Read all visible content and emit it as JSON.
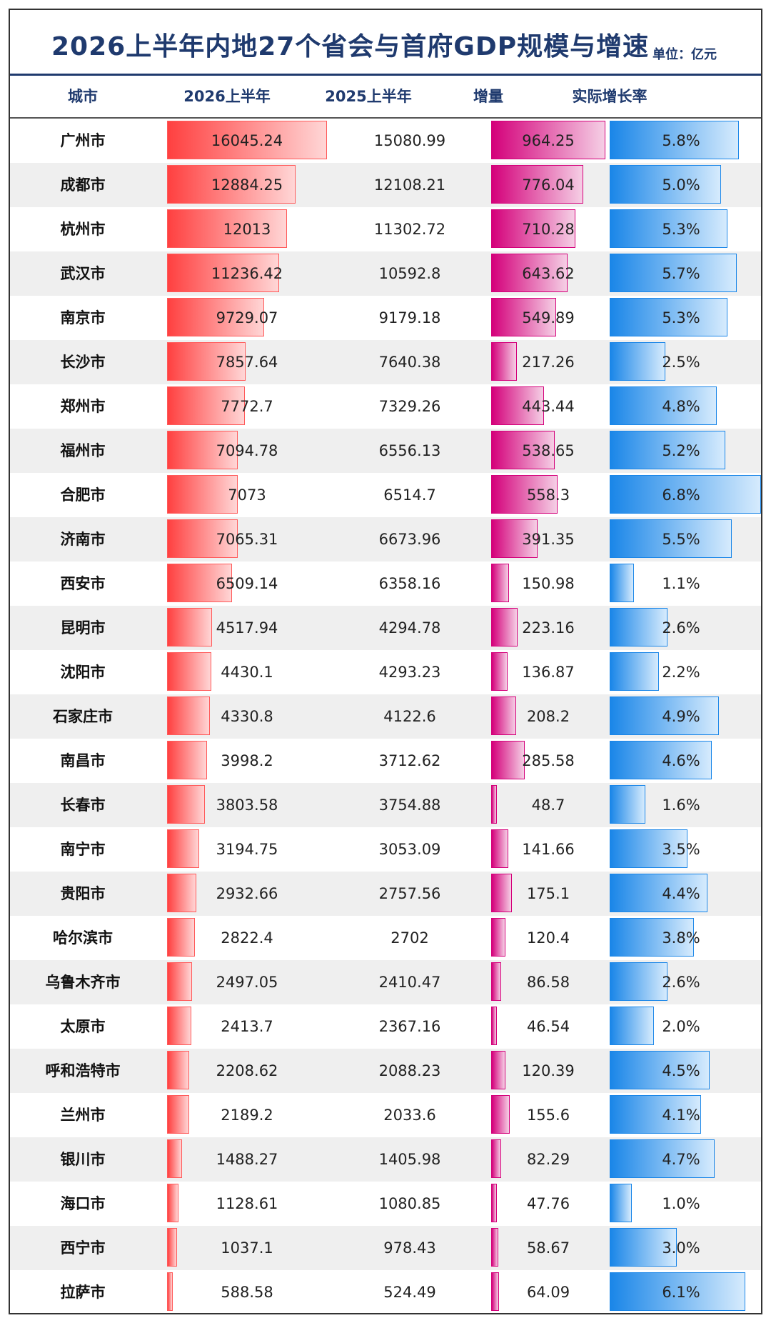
{
  "title": "2026上半年内地27个省会与首府GDP规模与增速",
  "unit": "单位：亿元",
  "headers": [
    "城市",
    "2026上半年",
    "2025上半年",
    "增量",
    "实际增长率"
  ],
  "colors": {
    "title": "#1f3a6e",
    "gdp_bar": "#ff4040",
    "increment_bar": "#d4007a",
    "growth_bar": "#1a86e8",
    "alt_row": "#efefef"
  },
  "chart_data": {
    "type": "table",
    "columns": [
      "城市",
      "2026上半年",
      "2025上半年",
      "增量",
      "实际增长率"
    ],
    "rows": [
      {
        "city": "广州市",
        "gdp_2026h1": "16045.24",
        "gdp_2025h1": "15080.99",
        "increment": "964.25",
        "growth": "5.8%",
        "growth_value": 5.8
      },
      {
        "city": "成都市",
        "gdp_2026h1": "12884.25",
        "gdp_2025h1": "12108.21",
        "increment": "776.04",
        "growth": "5.0%",
        "growth_value": 5.0
      },
      {
        "city": "杭州市",
        "gdp_2026h1": "12013",
        "gdp_2025h1": "11302.72",
        "increment": "710.28",
        "growth": "5.3%",
        "growth_value": 5.3
      },
      {
        "city": "武汉市",
        "gdp_2026h1": "11236.42",
        "gdp_2025h1": "10592.8",
        "increment": "643.62",
        "growth": "5.7%",
        "growth_value": 5.7
      },
      {
        "city": "南京市",
        "gdp_2026h1": "9729.07",
        "gdp_2025h1": "9179.18",
        "increment": "549.89",
        "growth": "5.3%",
        "growth_value": 5.3
      },
      {
        "city": "长沙市",
        "gdp_2026h1": "7857.64",
        "gdp_2025h1": "7640.38",
        "increment": "217.26",
        "growth": "2.5%",
        "growth_value": 2.5
      },
      {
        "city": "郑州市",
        "gdp_2026h1": "7772.7",
        "gdp_2025h1": "7329.26",
        "increment": "443.44",
        "growth": "4.8%",
        "growth_value": 4.8
      },
      {
        "city": "福州市",
        "gdp_2026h1": "7094.78",
        "gdp_2025h1": "6556.13",
        "increment": "538.65",
        "growth": "5.2%",
        "growth_value": 5.2
      },
      {
        "city": "合肥市",
        "gdp_2026h1": "7073",
        "gdp_2025h1": "6514.7",
        "increment": "558.3",
        "growth": "6.8%",
        "growth_value": 6.8
      },
      {
        "city": "济南市",
        "gdp_2026h1": "7065.31",
        "gdp_2025h1": "6673.96",
        "increment": "391.35",
        "growth": "5.5%",
        "growth_value": 5.5
      },
      {
        "city": "西安市",
        "gdp_2026h1": "6509.14",
        "gdp_2025h1": "6358.16",
        "increment": "150.98",
        "growth": "1.1%",
        "growth_value": 1.1
      },
      {
        "city": "昆明市",
        "gdp_2026h1": "4517.94",
        "gdp_2025h1": "4294.78",
        "increment": "223.16",
        "growth": "2.6%",
        "growth_value": 2.6
      },
      {
        "city": "沈阳市",
        "gdp_2026h1": "4430.1",
        "gdp_2025h1": "4293.23",
        "increment": "136.87",
        "growth": "2.2%",
        "growth_value": 2.2
      },
      {
        "city": "石家庄市",
        "gdp_2026h1": "4330.8",
        "gdp_2025h1": "4122.6",
        "increment": "208.2",
        "growth": "4.9%",
        "growth_value": 4.9
      },
      {
        "city": "南昌市",
        "gdp_2026h1": "3998.2",
        "gdp_2025h1": "3712.62",
        "increment": "285.58",
        "growth": "4.6%",
        "growth_value": 4.6
      },
      {
        "city": "长春市",
        "gdp_2026h1": "3803.58",
        "gdp_2025h1": "3754.88",
        "increment": "48.7",
        "growth": "1.6%",
        "growth_value": 1.6
      },
      {
        "city": "南宁市",
        "gdp_2026h1": "3194.75",
        "gdp_2025h1": "3053.09",
        "increment": "141.66",
        "growth": "3.5%",
        "growth_value": 3.5
      },
      {
        "city": "贵阳市",
        "gdp_2026h1": "2932.66",
        "gdp_2025h1": "2757.56",
        "increment": "175.1",
        "growth": "4.4%",
        "growth_value": 4.4
      },
      {
        "city": "哈尔滨市",
        "gdp_2026h1": "2822.4",
        "gdp_2025h1": "2702",
        "increment": "120.4",
        "growth": "3.8%",
        "growth_value": 3.8
      },
      {
        "city": "乌鲁木齐市",
        "gdp_2026h1": "2497.05",
        "gdp_2025h1": "2410.47",
        "increment": "86.58",
        "growth": "2.6%",
        "growth_value": 2.6
      },
      {
        "city": "太原市",
        "gdp_2026h1": "2413.7",
        "gdp_2025h1": "2367.16",
        "increment": "46.54",
        "growth": "2.0%",
        "growth_value": 2.0
      },
      {
        "city": "呼和浩特市",
        "gdp_2026h1": "2208.62",
        "gdp_2025h1": "2088.23",
        "increment": "120.39",
        "growth": "4.5%",
        "growth_value": 4.5
      },
      {
        "city": "兰州市",
        "gdp_2026h1": "2189.2",
        "gdp_2025h1": "2033.6",
        "increment": "155.6",
        "growth": "4.1%",
        "growth_value": 4.1
      },
      {
        "city": "银川市",
        "gdp_2026h1": "1488.27",
        "gdp_2025h1": "1405.98",
        "increment": "82.29",
        "growth": "4.7%",
        "growth_value": 4.7
      },
      {
        "city": "海口市",
        "gdp_2026h1": "1128.61",
        "gdp_2025h1": "1080.85",
        "increment": "47.76",
        "growth": "1.0%",
        "growth_value": 1.0
      },
      {
        "city": "西宁市",
        "gdp_2026h1": "1037.1",
        "gdp_2025h1": "978.43",
        "increment": "58.67",
        "growth": "3.0%",
        "growth_value": 3.0
      },
      {
        "city": "拉萨市",
        "gdp_2026h1": "588.58",
        "gdp_2025h1": "524.49",
        "increment": "64.09",
        "growth": "6.1%",
        "growth_value": 6.1
      }
    ]
  }
}
